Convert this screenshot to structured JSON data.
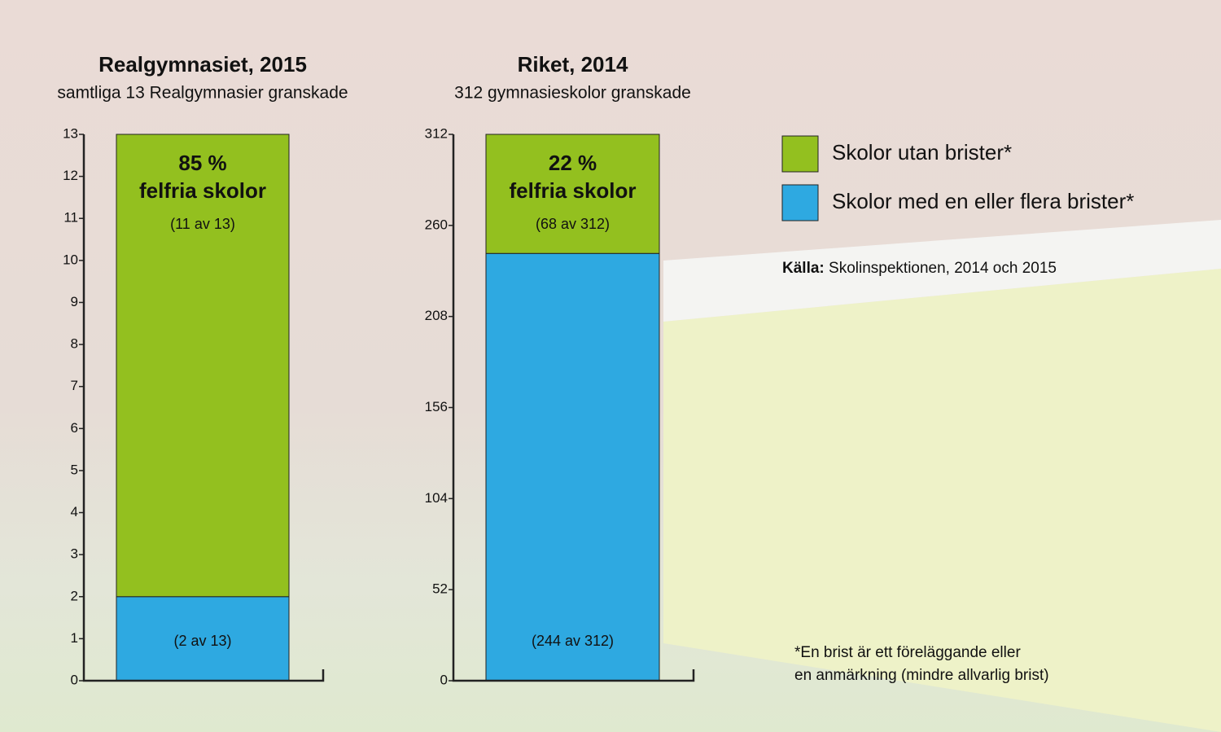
{
  "chart_data": [
    {
      "type": "bar",
      "stacked": true,
      "title": "Realgymnasiet, 2015",
      "subtitle": "samtliga 13 Realgymnasier granskade",
      "annotations": [
        "85 %",
        "felfria skolor"
      ],
      "ylim": [
        0,
        13
      ],
      "yticks": [
        0,
        1,
        2,
        3,
        4,
        5,
        6,
        7,
        8,
        9,
        10,
        11,
        12,
        13
      ],
      "series": [
        {
          "name": "Skolor utan brister*",
          "color": "#93c01f",
          "values": [
            11
          ],
          "value_labels": [
            "(11 av 13)"
          ]
        },
        {
          "name": "Skolor med en eller flera brister*",
          "color": "#2ea9e1",
          "values": [
            2
          ],
          "value_labels": [
            "(2 av 13)"
          ]
        }
      ]
    },
    {
      "type": "bar",
      "stacked": true,
      "title": "Riket, 2014",
      "subtitle": "312 gymnasieskolor granskade",
      "annotations": [
        "22 %",
        "felfria skolor"
      ],
      "ylim": [
        0,
        312
      ],
      "yticks": [
        0,
        52,
        104,
        156,
        208,
        260,
        312
      ],
      "series": [
        {
          "color": "#93c01f",
          "values": [
            68
          ],
          "value_labels": [
            "(68 av 312)"
          ]
        },
        {
          "color": "#2ea9e1",
          "values": [
            244
          ],
          "value_labels": [
            "(244 av 312)"
          ]
        }
      ]
    }
  ],
  "source": {
    "label": "Källa:",
    "text": "Skolinspektionen, 2014 och 2015"
  },
  "footnote": [
    "*En brist är ett föreläggande eller",
    "en anmärkning (mindre allvarlig brist)"
  ]
}
